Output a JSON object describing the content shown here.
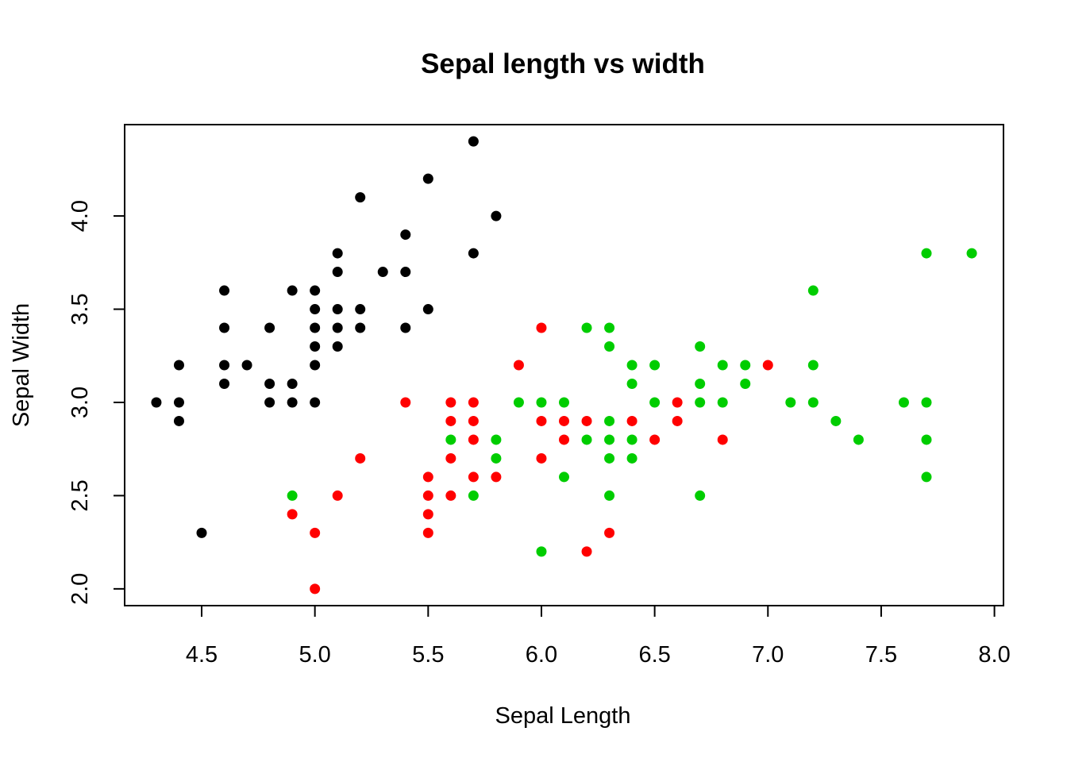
{
  "chart_data": {
    "type": "scatter",
    "title": "Sepal length vs width",
    "xlabel": "Sepal Length",
    "ylabel": "Sepal Width",
    "xlim": [
      4.16,
      8.04
    ],
    "ylim": [
      1.91,
      4.49
    ],
    "xticks": [
      4.5,
      5.0,
      5.5,
      6.0,
      6.5,
      7.0,
      7.5,
      8.0
    ],
    "xtick_labels": [
      "4.5",
      "5.0",
      "5.5",
      "6.0",
      "6.5",
      "7.0",
      "7.5",
      "8.0"
    ],
    "yticks": [
      2.0,
      2.5,
      3.0,
      3.5,
      4.0
    ],
    "ytick_labels": [
      "2.0",
      "2.5",
      "3.0",
      "3.5",
      "4.0"
    ],
    "grid": false,
    "legend": "none",
    "series": [
      {
        "color": "#000000",
        "points": [
          [
            4.3,
            3.0
          ],
          [
            4.4,
            3.2
          ],
          [
            4.4,
            3.0
          ],
          [
            4.4,
            2.9
          ],
          [
            4.5,
            2.3
          ],
          [
            4.6,
            3.6
          ],
          [
            4.6,
            3.4
          ],
          [
            4.6,
            3.2
          ],
          [
            4.6,
            3.1
          ],
          [
            4.7,
            3.2
          ],
          [
            4.8,
            3.4
          ],
          [
            4.8,
            3.1
          ],
          [
            4.8,
            3.0
          ],
          [
            4.9,
            3.6
          ],
          [
            4.9,
            3.1
          ],
          [
            4.9,
            3.0
          ],
          [
            5.0,
            3.6
          ],
          [
            5.0,
            3.5
          ],
          [
            5.0,
            3.4
          ],
          [
            5.0,
            3.3
          ],
          [
            5.0,
            3.2
          ],
          [
            5.0,
            3.0
          ],
          [
            5.1,
            3.8
          ],
          [
            5.1,
            3.7
          ],
          [
            5.1,
            3.5
          ],
          [
            5.1,
            3.4
          ],
          [
            5.1,
            3.3
          ],
          [
            5.2,
            4.1
          ],
          [
            5.2,
            3.5
          ],
          [
            5.2,
            3.4
          ],
          [
            5.3,
            3.7
          ],
          [
            5.4,
            3.9
          ],
          [
            5.4,
            3.7
          ],
          [
            5.4,
            3.4
          ],
          [
            5.5,
            4.2
          ],
          [
            5.5,
            3.5
          ],
          [
            5.7,
            4.4
          ],
          [
            5.7,
            3.8
          ],
          [
            5.8,
            4.0
          ]
        ]
      },
      {
        "color": "#ff0000",
        "points": [
          [
            4.9,
            2.4
          ],
          [
            5.0,
            2.3
          ],
          [
            5.0,
            2.0
          ],
          [
            5.1,
            2.5
          ],
          [
            5.2,
            2.7
          ],
          [
            5.4,
            3.0
          ],
          [
            5.5,
            2.6
          ],
          [
            5.5,
            2.5
          ],
          [
            5.5,
            2.4
          ],
          [
            5.5,
            2.3
          ],
          [
            5.6,
            3.0
          ],
          [
            5.6,
            2.9
          ],
          [
            5.6,
            2.7
          ],
          [
            5.6,
            2.5
          ],
          [
            5.7,
            3.0
          ],
          [
            5.7,
            2.9
          ],
          [
            5.7,
            2.8
          ],
          [
            5.7,
            2.6
          ],
          [
            5.8,
            2.6
          ],
          [
            5.9,
            3.2
          ],
          [
            6.0,
            3.4
          ],
          [
            6.0,
            2.9
          ],
          [
            6.0,
            2.7
          ],
          [
            6.1,
            2.9
          ],
          [
            6.1,
            2.8
          ],
          [
            6.2,
            2.9
          ],
          [
            6.2,
            2.2
          ],
          [
            6.3,
            2.3
          ],
          [
            6.4,
            2.9
          ],
          [
            6.5,
            2.8
          ],
          [
            6.6,
            3.0
          ],
          [
            6.6,
            2.9
          ],
          [
            6.8,
            2.8
          ],
          [
            7.0,
            3.2
          ]
        ]
      },
      {
        "color": "#00cd00",
        "points": [
          [
            4.9,
            2.5
          ],
          [
            5.6,
            2.8
          ],
          [
            5.7,
            2.5
          ],
          [
            5.8,
            2.8
          ],
          [
            5.8,
            2.7
          ],
          [
            5.9,
            3.0
          ],
          [
            6.0,
            3.0
          ],
          [
            6.0,
            2.2
          ],
          [
            6.1,
            3.0
          ],
          [
            6.1,
            2.6
          ],
          [
            6.2,
            3.4
          ],
          [
            6.2,
            2.8
          ],
          [
            6.3,
            3.4
          ],
          [
            6.3,
            3.3
          ],
          [
            6.3,
            2.9
          ],
          [
            6.3,
            2.8
          ],
          [
            6.3,
            2.7
          ],
          [
            6.3,
            2.5
          ],
          [
            6.4,
            3.2
          ],
          [
            6.4,
            3.1
          ],
          [
            6.4,
            2.8
          ],
          [
            6.4,
            2.7
          ],
          [
            6.5,
            3.2
          ],
          [
            6.5,
            3.0
          ],
          [
            6.7,
            3.3
          ],
          [
            6.7,
            3.1
          ],
          [
            6.7,
            3.0
          ],
          [
            6.7,
            2.5
          ],
          [
            6.8,
            3.2
          ],
          [
            6.8,
            3.0
          ],
          [
            6.9,
            3.2
          ],
          [
            6.9,
            3.1
          ],
          [
            7.1,
            3.0
          ],
          [
            7.2,
            3.6
          ],
          [
            7.2,
            3.2
          ],
          [
            7.2,
            3.0
          ],
          [
            7.3,
            2.9
          ],
          [
            7.4,
            2.8
          ],
          [
            7.6,
            3.0
          ],
          [
            7.7,
            3.8
          ],
          [
            7.7,
            3.0
          ],
          [
            7.7,
            2.8
          ],
          [
            7.7,
            2.6
          ],
          [
            7.9,
            3.8
          ]
        ]
      }
    ]
  }
}
